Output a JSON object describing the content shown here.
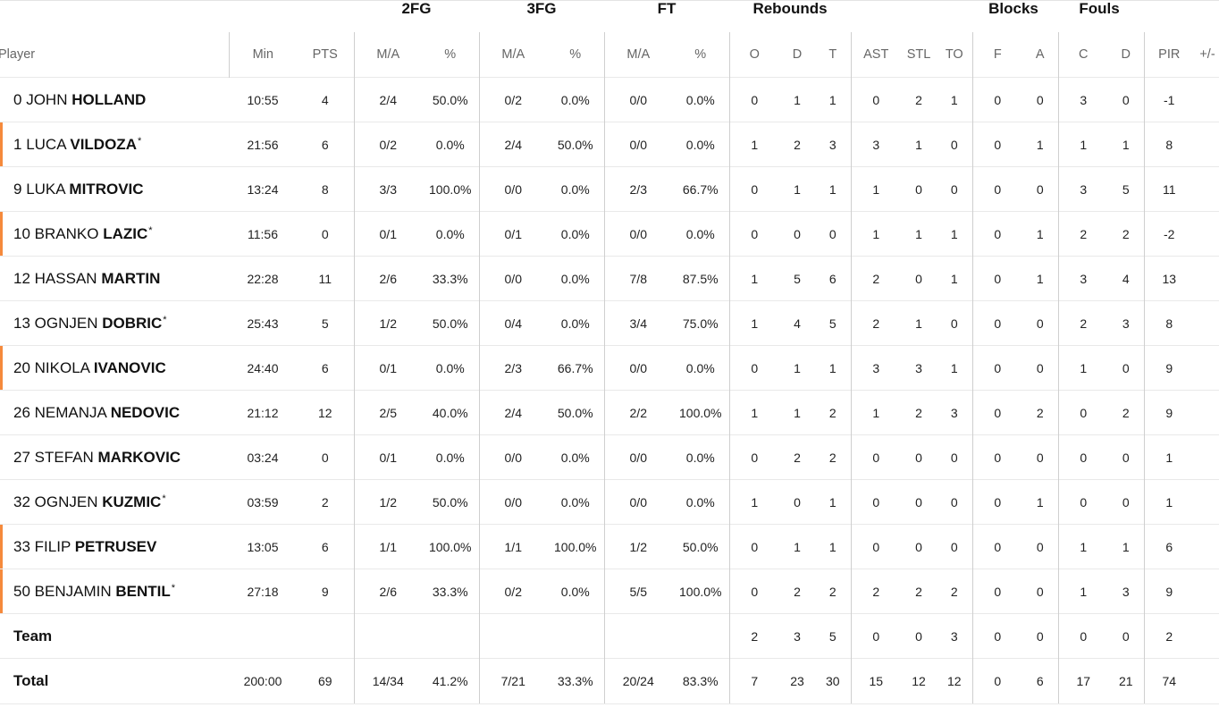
{
  "group_headers": {
    "fg2": "2FG",
    "fg3": "3FG",
    "ft": "FT",
    "rebounds": "Rebounds",
    "blocks": "Blocks",
    "fouls": "Fouls"
  },
  "columns": {
    "player": "Player",
    "min": "Min",
    "pts": "PTS",
    "fg2_ma": "M/A",
    "fg2_pct": "%",
    "fg3_ma": "M/A",
    "fg3_pct": "%",
    "ft_ma": "M/A",
    "ft_pct": "%",
    "reb_o": "O",
    "reb_d": "D",
    "reb_t": "T",
    "ast": "AST",
    "stl": "STL",
    "to": "TO",
    "blk_f": "F",
    "blk_a": "A",
    "foul_c": "C",
    "foul_d": "D",
    "pir": "PIR",
    "pm": "+/-"
  },
  "accent_color": "#f58a3c",
  "players": [
    {
      "num": "0",
      "first": "JOHN",
      "last": "HOLLAND",
      "star": "",
      "starter": false,
      "min": "10:55",
      "pts": "4",
      "fg2": "2/4",
      "fg2p": "50.0%",
      "fg3": "0/2",
      "fg3p": "0.0%",
      "ft": "0/0",
      "ftp": "0.0%",
      "o": "0",
      "d": "1",
      "t": "1",
      "ast": "0",
      "stl": "2",
      "to": "1",
      "bf": "0",
      "ba": "0",
      "fc": "3",
      "fd": "0",
      "pir": "-1",
      "pm": ""
    },
    {
      "num": "1",
      "first": "LUCA",
      "last": "VILDOZA",
      "star": "*",
      "starter": true,
      "min": "21:56",
      "pts": "6",
      "fg2": "0/2",
      "fg2p": "0.0%",
      "fg3": "2/4",
      "fg3p": "50.0%",
      "ft": "0/0",
      "ftp": "0.0%",
      "o": "1",
      "d": "2",
      "t": "3",
      "ast": "3",
      "stl": "1",
      "to": "0",
      "bf": "0",
      "ba": "1",
      "fc": "1",
      "fd": "1",
      "pir": "8",
      "pm": ""
    },
    {
      "num": "9",
      "first": "LUKA",
      "last": "MITROVIC",
      "star": "",
      "starter": false,
      "min": "13:24",
      "pts": "8",
      "fg2": "3/3",
      "fg2p": "100.0%",
      "fg3": "0/0",
      "fg3p": "0.0%",
      "ft": "2/3",
      "ftp": "66.7%",
      "o": "0",
      "d": "1",
      "t": "1",
      "ast": "1",
      "stl": "0",
      "to": "0",
      "bf": "0",
      "ba": "0",
      "fc": "3",
      "fd": "5",
      "pir": "11",
      "pm": ""
    },
    {
      "num": "10",
      "first": "BRANKO",
      "last": "LAZIC",
      "star": "*",
      "starter": true,
      "min": "11:56",
      "pts": "0",
      "fg2": "0/1",
      "fg2p": "0.0%",
      "fg3": "0/1",
      "fg3p": "0.0%",
      "ft": "0/0",
      "ftp": "0.0%",
      "o": "0",
      "d": "0",
      "t": "0",
      "ast": "1",
      "stl": "1",
      "to": "1",
      "bf": "0",
      "ba": "1",
      "fc": "2",
      "fd": "2",
      "pir": "-2",
      "pm": ""
    },
    {
      "num": "12",
      "first": "HASSAN",
      "last": "MARTIN",
      "star": "",
      "starter": false,
      "min": "22:28",
      "pts": "11",
      "fg2": "2/6",
      "fg2p": "33.3%",
      "fg3": "0/0",
      "fg3p": "0.0%",
      "ft": "7/8",
      "ftp": "87.5%",
      "o": "1",
      "d": "5",
      "t": "6",
      "ast": "2",
      "stl": "0",
      "to": "1",
      "bf": "0",
      "ba": "1",
      "fc": "3",
      "fd": "4",
      "pir": "13",
      "pm": ""
    },
    {
      "num": "13",
      "first": "OGNJEN",
      "last": "DOBRIC",
      "star": "*",
      "starter": false,
      "min": "25:43",
      "pts": "5",
      "fg2": "1/2",
      "fg2p": "50.0%",
      "fg3": "0/4",
      "fg3p": "0.0%",
      "ft": "3/4",
      "ftp": "75.0%",
      "o": "1",
      "d": "4",
      "t": "5",
      "ast": "2",
      "stl": "1",
      "to": "0",
      "bf": "0",
      "ba": "0",
      "fc": "2",
      "fd": "3",
      "pir": "8",
      "pm": ""
    },
    {
      "num": "20",
      "first": "NIKOLA",
      "last": "IVANOVIC",
      "star": "",
      "starter": true,
      "min": "24:40",
      "pts": "6",
      "fg2": "0/1",
      "fg2p": "0.0%",
      "fg3": "2/3",
      "fg3p": "66.7%",
      "ft": "0/0",
      "ftp": "0.0%",
      "o": "0",
      "d": "1",
      "t": "1",
      "ast": "3",
      "stl": "3",
      "to": "1",
      "bf": "0",
      "ba": "0",
      "fc": "1",
      "fd": "0",
      "pir": "9",
      "pm": ""
    },
    {
      "num": "26",
      "first": "NEMANJA",
      "last": "NEDOVIC",
      "star": "",
      "starter": false,
      "min": "21:12",
      "pts": "12",
      "fg2": "2/5",
      "fg2p": "40.0%",
      "fg3": "2/4",
      "fg3p": "50.0%",
      "ft": "2/2",
      "ftp": "100.0%",
      "o": "1",
      "d": "1",
      "t": "2",
      "ast": "1",
      "stl": "2",
      "to": "3",
      "bf": "0",
      "ba": "2",
      "fc": "0",
      "fd": "2",
      "pir": "9",
      "pm": ""
    },
    {
      "num": "27",
      "first": "STEFAN",
      "last": "MARKOVIC",
      "star": "",
      "starter": false,
      "min": "03:24",
      "pts": "0",
      "fg2": "0/1",
      "fg2p": "0.0%",
      "fg3": "0/0",
      "fg3p": "0.0%",
      "ft": "0/0",
      "ftp": "0.0%",
      "o": "0",
      "d": "2",
      "t": "2",
      "ast": "0",
      "stl": "0",
      "to": "0",
      "bf": "0",
      "ba": "0",
      "fc": "0",
      "fd": "0",
      "pir": "1",
      "pm": ""
    },
    {
      "num": "32",
      "first": "OGNJEN",
      "last": "KUZMIC",
      "star": "*",
      "starter": false,
      "min": "03:59",
      "pts": "2",
      "fg2": "1/2",
      "fg2p": "50.0%",
      "fg3": "0/0",
      "fg3p": "0.0%",
      "ft": "0/0",
      "ftp": "0.0%",
      "o": "1",
      "d": "0",
      "t": "1",
      "ast": "0",
      "stl": "0",
      "to": "0",
      "bf": "0",
      "ba": "1",
      "fc": "0",
      "fd": "0",
      "pir": "1",
      "pm": ""
    },
    {
      "num": "33",
      "first": "FILIP",
      "last": "PETRUSEV",
      "star": "",
      "starter": true,
      "min": "13:05",
      "pts": "6",
      "fg2": "1/1",
      "fg2p": "100.0%",
      "fg3": "1/1",
      "fg3p": "100.0%",
      "ft": "1/2",
      "ftp": "50.0%",
      "o": "0",
      "d": "1",
      "t": "1",
      "ast": "0",
      "stl": "0",
      "to": "0",
      "bf": "0",
      "ba": "0",
      "fc": "1",
      "fd": "1",
      "pir": "6",
      "pm": ""
    },
    {
      "num": "50",
      "first": "BENJAMIN",
      "last": "BENTIL",
      "star": "*",
      "starter": true,
      "min": "27:18",
      "pts": "9",
      "fg2": "2/6",
      "fg2p": "33.3%",
      "fg3": "0/2",
      "fg3p": "0.0%",
      "ft": "5/5",
      "ftp": "100.0%",
      "o": "0",
      "d": "2",
      "t": "2",
      "ast": "2",
      "stl": "2",
      "to": "2",
      "bf": "0",
      "ba": "0",
      "fc": "1",
      "fd": "3",
      "pir": "9",
      "pm": ""
    }
  ],
  "team": {
    "label": "Team",
    "min": "",
    "pts": "",
    "fg2": "",
    "fg2p": "",
    "fg3": "",
    "fg3p": "",
    "ft": "",
    "ftp": "",
    "o": "2",
    "d": "3",
    "t": "5",
    "ast": "0",
    "stl": "0",
    "to": "3",
    "bf": "0",
    "ba": "0",
    "fc": "0",
    "fd": "0",
    "pir": "2",
    "pm": ""
  },
  "total": {
    "label": "Total",
    "min": "200:00",
    "pts": "69",
    "fg2": "14/34",
    "fg2p": "41.2%",
    "fg3": "7/21",
    "fg3p": "33.3%",
    "ft": "20/24",
    "ftp": "83.3%",
    "o": "7",
    "d": "23",
    "t": "30",
    "ast": "15",
    "stl": "12",
    "to": "12",
    "bf": "0",
    "ba": "6",
    "fc": "17",
    "fd": "21",
    "pir": "74",
    "pm": ""
  }
}
